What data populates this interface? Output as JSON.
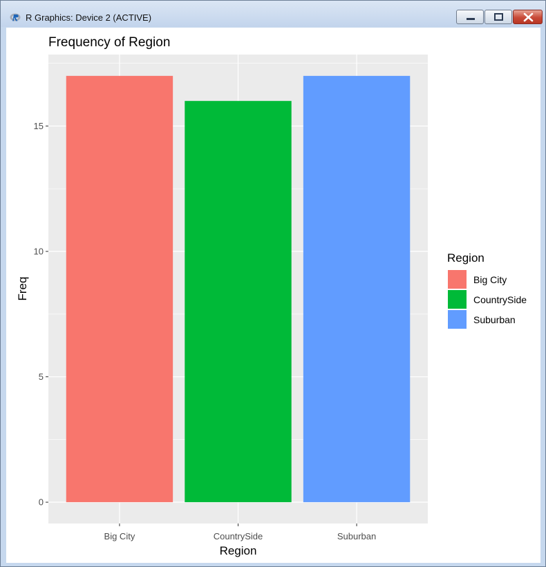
{
  "window": {
    "title": "R Graphics: Device 2 (ACTIVE)",
    "icon": "r-logo-icon",
    "controls": [
      "minimize-icon",
      "maximize-icon",
      "close-icon"
    ]
  },
  "chart_data": {
    "type": "bar",
    "title": "Frequency of Region",
    "xlabel": "Region",
    "ylabel": "Freq",
    "categories": [
      "Big City",
      "CountrySide",
      "Suburban"
    ],
    "values": [
      17,
      16,
      17
    ],
    "colors": [
      "#F8766D",
      "#00BA38",
      "#619CFF"
    ],
    "ylim": [
      -0.85,
      17.85
    ],
    "yticks": [
      0,
      5,
      10,
      15
    ],
    "yticklabels": [
      "0",
      "5",
      "10",
      "15"
    ],
    "grid": true,
    "panel_background": "#EBEBEB",
    "legend": {
      "title": "Region",
      "placement": "right",
      "entries": [
        "Big City",
        "CountrySide",
        "Suburban"
      ]
    }
  }
}
